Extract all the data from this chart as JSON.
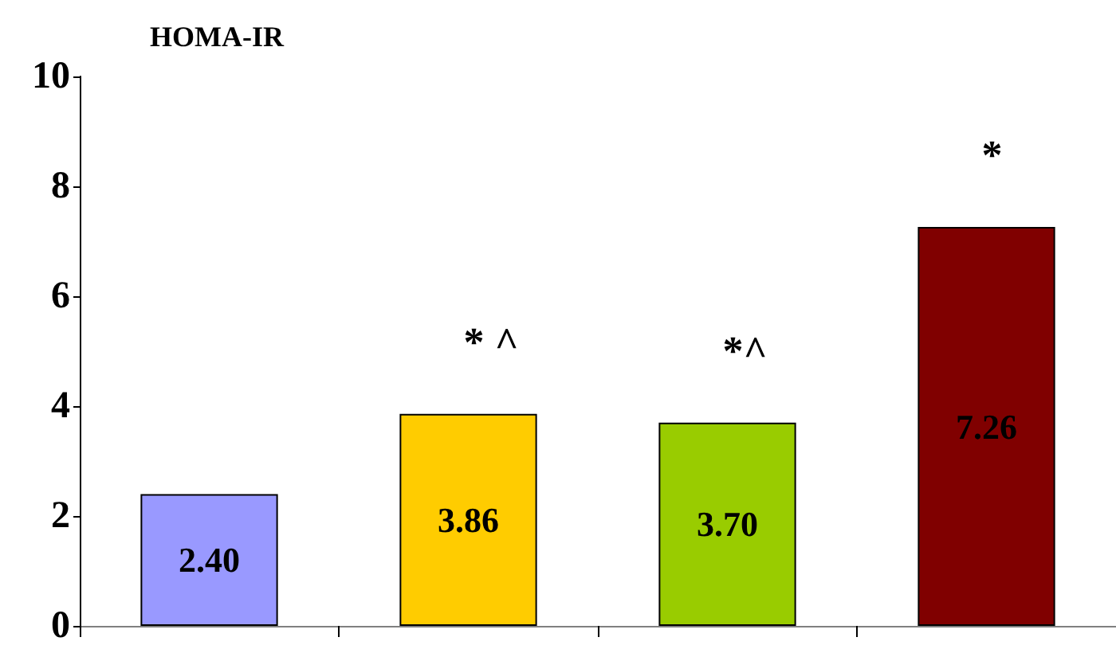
{
  "chart_data": {
    "type": "bar",
    "ylabel": "HOMA-IR",
    "categories": [
      null,
      null,
      null,
      null
    ],
    "values": [
      2.4,
      3.86,
      3.7,
      7.26
    ],
    "colors": [
      "#9999ff",
      "#ffcc00",
      "#99cc00",
      "#800000"
    ],
    "value_labels": [
      "2.40",
      "3.86",
      "3.70",
      "7.26"
    ],
    "ylim": [
      0,
      10
    ],
    "yticks": [
      0,
      2,
      4,
      6,
      8,
      10
    ],
    "annotations": [
      "* ^",
      "*^",
      "*"
    ]
  }
}
